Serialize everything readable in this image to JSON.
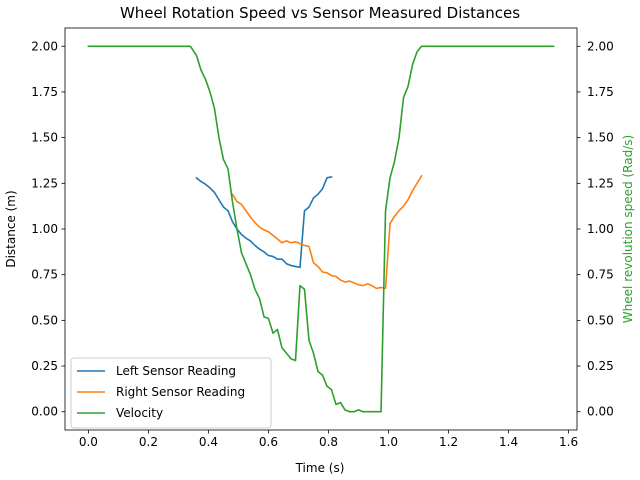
{
  "chart_data": {
    "type": "line",
    "title": "Wheel Rotation Speed vs Sensor Measured Distances",
    "xlabel": "Time (s)",
    "ylabel": "Distance (m)",
    "y2label": "Wheel revolution speed (Rad/s)",
    "xlim": [
      -0.078,
      1.628
    ],
    "ylim": [
      -0.1,
      2.1
    ],
    "y2lim": [
      -0.1,
      2.1
    ],
    "x_ticks": [
      0.0,
      0.2,
      0.4,
      0.6,
      0.8,
      1.0,
      1.2,
      1.4,
      1.6
    ],
    "x_tick_labels": [
      "0.0",
      "0.2",
      "0.4",
      "0.6",
      "0.8",
      "1.0",
      "1.2",
      "1.4",
      "1.6"
    ],
    "y_ticks": [
      0.0,
      0.25,
      0.5,
      0.75,
      1.0,
      1.25,
      1.5,
      1.75,
      2.0
    ],
    "y_tick_labels": [
      "0.00",
      "0.25",
      "0.50",
      "0.75",
      "1.00",
      "1.25",
      "1.50",
      "1.75",
      "2.00"
    ],
    "y2_ticks": [
      0.0,
      0.25,
      0.5,
      0.75,
      1.0,
      1.25,
      1.5,
      1.75,
      2.0
    ],
    "y2_tick_labels": [
      "0.00",
      "0.25",
      "0.50",
      "0.75",
      "1.00",
      "1.25",
      "1.50",
      "1.75",
      "2.00"
    ],
    "grid": false,
    "legend_position": "lower-left",
    "y2_color": "#2ca02c",
    "series": [
      {
        "name": "Left Sensor Reading",
        "axis": "left",
        "color": "#1f77b4",
        "x": [
          0.36,
          0.375,
          0.39,
          0.405,
          0.42,
          0.435,
          0.45,
          0.465,
          0.48,
          0.495,
          0.51,
          0.525,
          0.54,
          0.555,
          0.57,
          0.585,
          0.6,
          0.615,
          0.63,
          0.645,
          0.66,
          0.675,
          0.69,
          0.705,
          0.72,
          0.735,
          0.75,
          0.765,
          0.78,
          0.795,
          0.81
        ],
        "y": [
          1.28,
          1.26,
          1.245,
          1.225,
          1.2,
          1.16,
          1.12,
          1.1,
          1.04,
          1.0,
          0.97,
          0.95,
          0.935,
          0.91,
          0.89,
          0.875,
          0.855,
          0.85,
          0.835,
          0.835,
          0.81,
          0.8,
          0.795,
          0.79,
          1.1,
          1.12,
          1.17,
          1.19,
          1.22,
          1.28,
          1.285
        ]
      },
      {
        "name": "Right Sensor Reading",
        "axis": "left",
        "color": "#ff7f0e",
        "x": [
          0.48,
          0.495,
          0.51,
          0.525,
          0.54,
          0.555,
          0.57,
          0.585,
          0.6,
          0.615,
          0.63,
          0.645,
          0.66,
          0.675,
          0.69,
          0.705,
          0.72,
          0.735,
          0.75,
          0.765,
          0.78,
          0.795,
          0.81,
          0.825,
          0.84,
          0.855,
          0.87,
          0.885,
          0.9,
          0.915,
          0.93,
          0.945,
          0.96,
          0.975,
          0.99,
          1.005,
          1.02,
          1.035,
          1.05,
          1.065,
          1.08,
          1.095,
          1.11
        ],
        "y": [
          1.19,
          1.15,
          1.135,
          1.1,
          1.065,
          1.035,
          1.01,
          0.995,
          0.985,
          0.965,
          0.945,
          0.925,
          0.935,
          0.925,
          0.93,
          0.92,
          0.91,
          0.905,
          0.815,
          0.795,
          0.765,
          0.76,
          0.745,
          0.74,
          0.72,
          0.71,
          0.715,
          0.705,
          0.695,
          0.69,
          0.7,
          0.69,
          0.675,
          0.68,
          0.675,
          1.03,
          1.07,
          1.1,
          1.125,
          1.16,
          1.21,
          1.25,
          1.29
        ]
      },
      {
        "name": "Velocity",
        "axis": "right",
        "color": "#2ca02c",
        "x": [
          0.0,
          0.05,
          0.1,
          0.15,
          0.2,
          0.25,
          0.3,
          0.34,
          0.36,
          0.375,
          0.39,
          0.405,
          0.42,
          0.435,
          0.45,
          0.465,
          0.48,
          0.495,
          0.51,
          0.525,
          0.54,
          0.555,
          0.57,
          0.585,
          0.6,
          0.615,
          0.63,
          0.645,
          0.66,
          0.675,
          0.69,
          0.705,
          0.72,
          0.735,
          0.75,
          0.765,
          0.78,
          0.795,
          0.81,
          0.825,
          0.84,
          0.855,
          0.87,
          0.885,
          0.9,
          0.915,
          0.93,
          0.945,
          0.96,
          0.975,
          0.99,
          1.005,
          1.02,
          1.035,
          1.05,
          1.065,
          1.08,
          1.095,
          1.11,
          1.125,
          1.14,
          1.2,
          1.3,
          1.4,
          1.5,
          1.55
        ],
        "y": [
          2.0,
          2.0,
          2.0,
          2.0,
          2.0,
          2.0,
          2.0,
          2.0,
          1.95,
          1.87,
          1.82,
          1.75,
          1.66,
          1.5,
          1.38,
          1.33,
          1.15,
          1.0,
          0.87,
          0.81,
          0.75,
          0.67,
          0.62,
          0.52,
          0.51,
          0.43,
          0.45,
          0.35,
          0.32,
          0.29,
          0.28,
          0.69,
          0.67,
          0.39,
          0.32,
          0.22,
          0.2,
          0.14,
          0.12,
          0.04,
          0.05,
          0.01,
          0.0,
          0.0,
          0.01,
          0.0,
          0.0,
          0.0,
          0.0,
          0.0,
          1.1,
          1.28,
          1.37,
          1.5,
          1.72,
          1.78,
          1.9,
          1.97,
          2.0,
          2.0,
          2.0,
          2.0,
          2.0,
          2.0,
          2.0,
          2.0
        ]
      }
    ]
  }
}
